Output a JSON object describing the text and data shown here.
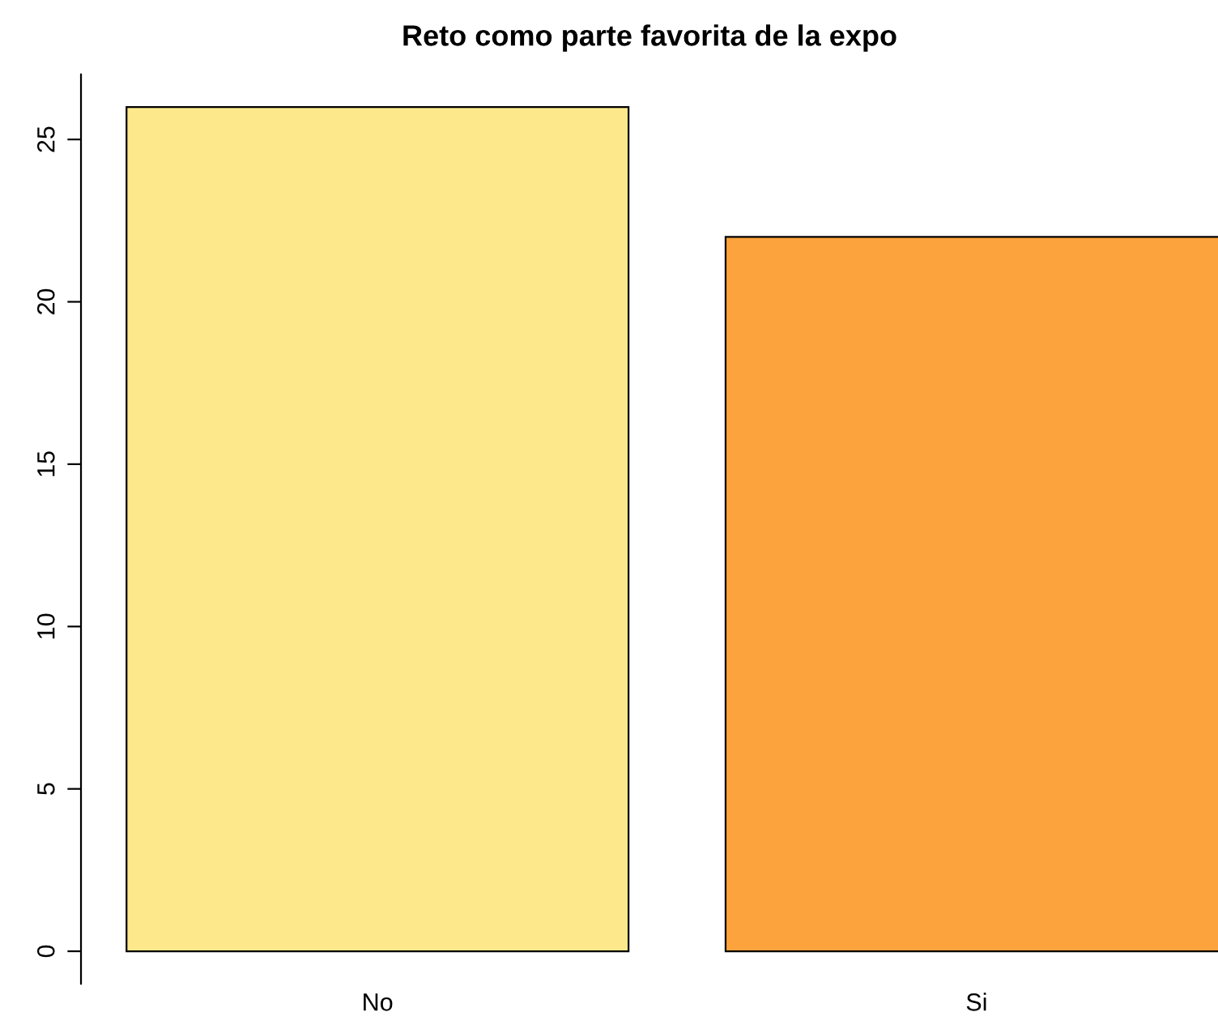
{
  "chart_data": {
    "type": "bar",
    "title": "Reto como parte favorita de la expo",
    "categories": [
      "No",
      "Si"
    ],
    "values": [
      26,
      22
    ],
    "colors": [
      "#fde98c",
      "#fca33e"
    ],
    "ylim": [
      -1,
      27
    ],
    "yticks": [
      0,
      5,
      10,
      15,
      20,
      25
    ],
    "grid": false,
    "legend": false
  }
}
